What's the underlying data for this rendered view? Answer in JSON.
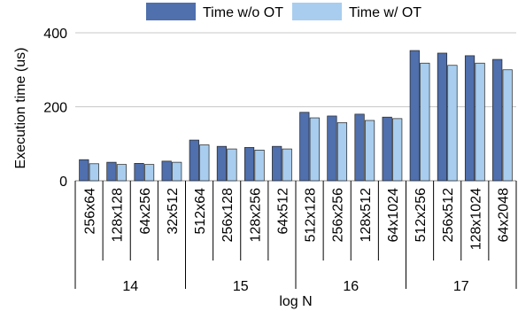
{
  "chart_data": {
    "type": "bar",
    "title": "",
    "xlabel": "log N",
    "ylabel": "Execution time (us)",
    "ylim": [
      0,
      400
    ],
    "yticks": [
      0,
      200,
      400
    ],
    "grid": true,
    "legend_position": "top",
    "categories": [
      "256x64",
      "128x128",
      "64x256",
      "32x512",
      "512x64",
      "256x128",
      "128x256",
      "64x512",
      "512x128",
      "256x256",
      "128x512",
      "64x1024",
      "512x256",
      "256x512",
      "128x1024",
      "64x2048"
    ],
    "groups": [
      {
        "label": "14",
        "count": 4
      },
      {
        "label": "15",
        "count": 4
      },
      {
        "label": "16",
        "count": 4
      },
      {
        "label": "17",
        "count": 4
      }
    ],
    "series": [
      {
        "name": "Time w/o OT",
        "color": "#4f6fad",
        "values": [
          57,
          50,
          47,
          53,
          110,
          93,
          90,
          93,
          185,
          175,
          180,
          172,
          352,
          345,
          338,
          328
        ]
      },
      {
        "name": "Time w/ OT",
        "color": "#a8cdee",
        "values": [
          46,
          44,
          44,
          50,
          97,
          86,
          83,
          86,
          170,
          157,
          163,
          168,
          318,
          312,
          318,
          300
        ]
      }
    ]
  }
}
